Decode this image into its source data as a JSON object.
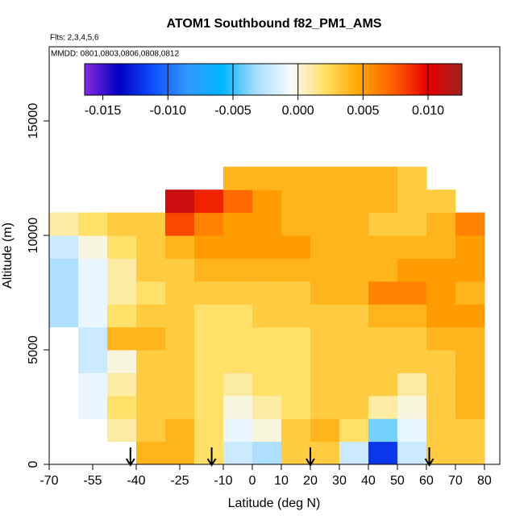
{
  "chart_data": {
    "type": "heatmap",
    "title": "ATOM1 Southbound f82_PM1_AMS",
    "flights_label": "Flts: 2,3,4,5,6",
    "dates_label": "MMDD: 0801,0803,0806,0808,0812",
    "x_label": "Latitude (deg N)",
    "y_label": "Altitude (m)",
    "xlim": [
      -70,
      85.3
    ],
    "ylim": [
      0,
      18240
    ],
    "xticks": [
      -70,
      -55,
      -40,
      -25,
      -10,
      0,
      10,
      20,
      30,
      40,
      50,
      60,
      70,
      80
    ],
    "yticks": [
      0,
      5000,
      10000,
      15000
    ],
    "x_edges": [
      -70,
      -60,
      -50,
      -40,
      -30,
      -20,
      -10,
      0,
      10,
      20,
      30,
      40,
      50,
      60,
      70,
      80
    ],
    "y_edges": [
      0,
      1000,
      2000,
      3000,
      4000,
      5000,
      6000,
      7000,
      8000,
      9000,
      10000,
      11000,
      12000,
      13000
    ],
    "z": [
      [
        null,
        null,
        null,
        0.004,
        0.004,
        0.002,
        -0.002,
        -0.003,
        0.003,
        0.003,
        -0.002,
        -0.012,
        -0.002,
        0.003,
        0.003
      ],
      [
        null,
        null,
        0.001,
        0.003,
        0.004,
        0.002,
        -0.001,
        0.0,
        0.003,
        0.004,
        0.002,
        -0.004,
        -0.001,
        0.003,
        0.003
      ],
      [
        null,
        -0.001,
        0.002,
        0.003,
        0.003,
        0.002,
        0.0,
        0.001,
        0.002,
        0.003,
        0.003,
        0.001,
        0.0,
        0.003,
        0.004
      ],
      [
        null,
        -0.001,
        0.001,
        0.003,
        0.003,
        0.002,
        0.001,
        0.002,
        0.002,
        0.003,
        0.003,
        0.003,
        0.001,
        0.003,
        0.004
      ],
      [
        null,
        -0.002,
        0.0,
        0.003,
        0.003,
        0.002,
        0.002,
        0.002,
        0.002,
        0.003,
        0.003,
        0.003,
        0.003,
        0.003,
        0.004
      ],
      [
        null,
        -0.002,
        0.004,
        0.004,
        0.003,
        0.002,
        0.002,
        0.002,
        0.002,
        0.003,
        0.003,
        0.003,
        0.003,
        0.004,
        0.004
      ],
      [
        -0.003,
        -0.001,
        0.002,
        0.003,
        0.003,
        0.002,
        0.002,
        0.003,
        0.003,
        0.003,
        0.003,
        0.004,
        0.004,
        0.005,
        0.005
      ],
      [
        -0.003,
        -0.001,
        0.001,
        0.002,
        0.003,
        0.003,
        0.003,
        0.003,
        0.003,
        0.004,
        0.004,
        0.006,
        0.006,
        0.005,
        0.004
      ],
      [
        -0.003,
        -0.001,
        0.001,
        0.003,
        0.003,
        0.004,
        0.004,
        0.004,
        0.004,
        0.004,
        0.004,
        0.004,
        0.005,
        0.005,
        0.005
      ],
      [
        -0.002,
        0.0,
        0.002,
        0.003,
        0.004,
        0.005,
        0.005,
        0.005,
        0.005,
        0.004,
        0.004,
        0.004,
        0.004,
        0.004,
        0.005
      ],
      [
        0.001,
        0.002,
        0.003,
        0.003,
        0.008,
        0.006,
        0.005,
        0.005,
        0.004,
        0.004,
        0.004,
        0.003,
        0.003,
        0.004,
        0.006
      ],
      [
        null,
        null,
        null,
        null,
        0.011,
        0.009,
        0.007,
        0.005,
        0.004,
        0.004,
        0.004,
        0.004,
        0.003,
        0.003,
        null
      ],
      [
        null,
        null,
        null,
        null,
        null,
        null,
        0.004,
        0.004,
        0.004,
        0.004,
        0.004,
        0.004,
        0.003,
        null,
        null
      ]
    ],
    "colorbar": {
      "lim": [
        -0.0164,
        0.0126
      ],
      "ticks": [
        -0.015,
        {
          "value": -0.01,
          "label": "-0.010"
        },
        -0.005,
        {
          "value": 0,
          "label": "0.000"
        },
        0.005,
        {
          "value": 0.01,
          "label": "0.010"
        }
      ],
      "colors": [
        "#8a2be2",
        "#0000c0",
        "#1050ff",
        "#3399ff",
        "#00b4ff",
        "#a8dcff",
        "#f5fbff",
        "#ffe066",
        "#ffa500",
        "#ff6000",
        "#e60000",
        "#a02020"
      ]
    },
    "arrow_lats": [
      -42,
      -14,
      20,
      61
    ]
  }
}
